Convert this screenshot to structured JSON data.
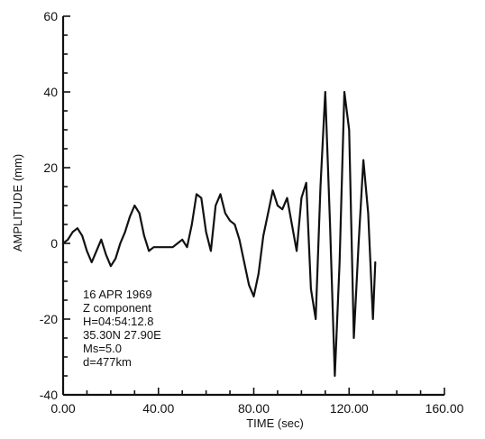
{
  "chart_data": {
    "type": "line",
    "title": "",
    "xlabel": "TIME (sec)",
    "ylabel": "AMPLITUDE (mm)",
    "xlim": [
      0,
      160
    ],
    "ylim": [
      -40,
      60
    ],
    "grid": false,
    "x_ticks": [
      0,
      40,
      80,
      120,
      160
    ],
    "x_tick_labels": [
      "0.00",
      "40.00",
      "80.00",
      "120.00",
      "160.00"
    ],
    "y_ticks": [
      -40,
      -20,
      0,
      20,
      40,
      60
    ],
    "y_tick_labels": [
      "-40",
      "-20",
      "0",
      "20",
      "40",
      "60"
    ],
    "annotations": [
      "16 APR 1969",
      "Z component",
      "H=04:54:12.8",
      "35.30N 27.90E",
      "Ms=5.0",
      "d=477km"
    ],
    "series": [
      {
        "x": [
          0,
          2,
          4,
          6,
          8,
          10,
          12,
          14,
          16,
          18,
          20,
          22,
          24,
          26,
          28,
          30,
          32,
          34,
          36,
          38,
          40,
          42,
          44,
          46,
          48,
          50,
          52,
          54,
          56,
          58,
          60,
          62,
          64,
          66,
          68,
          70,
          72,
          74,
          76,
          78,
          80,
          82,
          84,
          86,
          88,
          90,
          92,
          94,
          96,
          98,
          100,
          102,
          104,
          106,
          108,
          110,
          112,
          114,
          116,
          118,
          120,
          122,
          124,
          126,
          128,
          130,
          131
        ],
        "y": [
          0,
          1,
          3,
          4,
          2,
          -2,
          -5,
          -2,
          1,
          -3,
          -6,
          -4,
          0,
          3,
          7,
          10,
          8,
          2,
          -2,
          -1,
          -1,
          -1,
          -1,
          -1,
          0,
          1,
          -1,
          5,
          13,
          12,
          3,
          -2,
          10,
          13,
          8,
          6,
          5,
          1,
          -5,
          -11,
          -14,
          -8,
          2,
          8,
          14,
          10,
          9,
          12,
          5,
          -2,
          12,
          16,
          -12,
          -20,
          15,
          40,
          5,
          -35,
          -5,
          40,
          30,
          -25,
          0,
          22,
          8,
          -20,
          -5
        ]
      }
    ]
  }
}
